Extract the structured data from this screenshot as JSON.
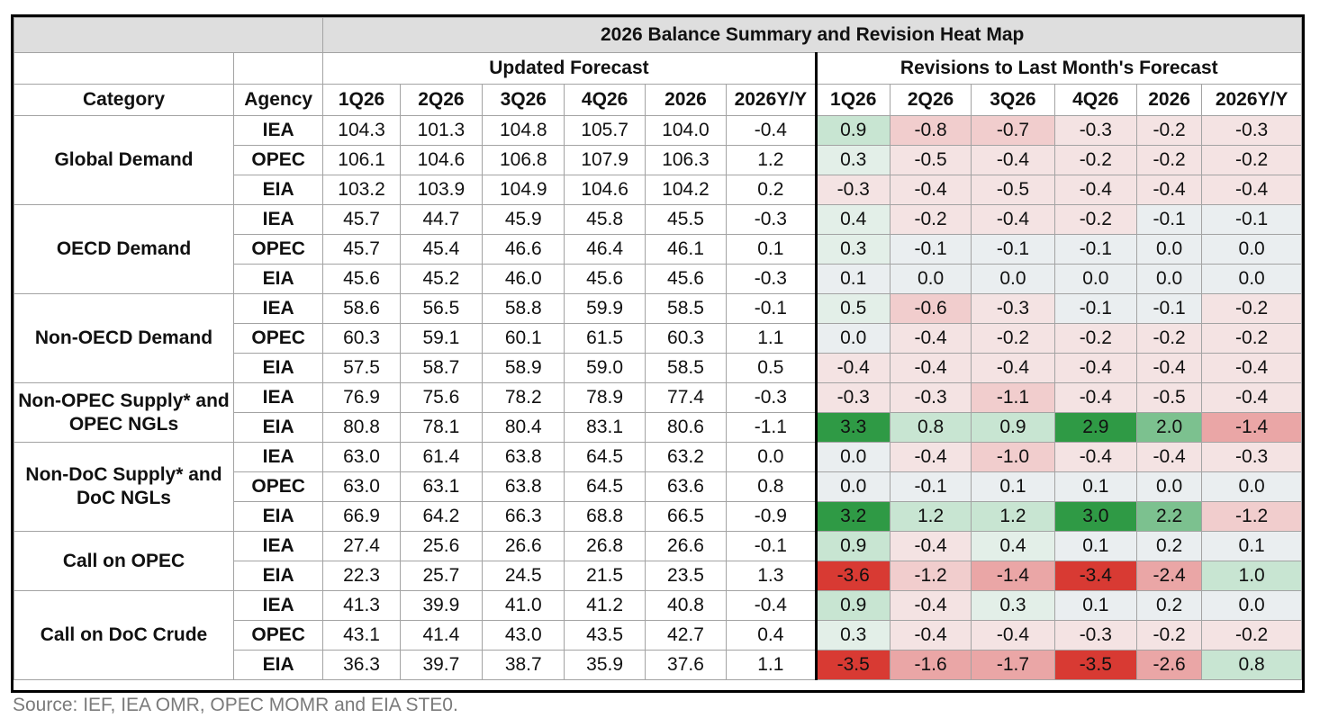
{
  "title": "2026 Balance Summary and Revision Heat Map",
  "groups": {
    "updated": "Updated Forecast",
    "revisions": "Revisions to Last Month's Forecast"
  },
  "columns": {
    "category": "Category",
    "agency": "Agency",
    "periods": [
      "1Q26",
      "2Q26",
      "3Q26",
      "4Q26",
      "2026",
      "2026Y/Y"
    ]
  },
  "heat_colors": {
    "positive_strong": "#2f9a45",
    "positive_mid": "#7cc18f",
    "positive_light": "#c8e5d2",
    "positive_faint": "#e3efe8",
    "neutral": "#eaeef0",
    "negative_faint": "#f4e3e3",
    "negative_light": "#f1cdcd",
    "negative_mid": "#eaa6a6",
    "negative_strong": "#d83a33"
  },
  "categories": [
    {
      "name": "Global Demand",
      "rows": [
        {
          "agency": "IEA",
          "forecast": [
            "104.3",
            "101.3",
            "104.8",
            "105.7",
            "104.0",
            "-0.4"
          ],
          "revisions": [
            "0.9",
            "-0.8",
            "-0.7",
            "-0.3",
            "-0.2",
            "-0.3"
          ]
        },
        {
          "agency": "OPEC",
          "forecast": [
            "106.1",
            "104.6",
            "106.8",
            "107.9",
            "106.3",
            "1.2"
          ],
          "revisions": [
            "0.3",
            "-0.5",
            "-0.4",
            "-0.2",
            "-0.2",
            "-0.2"
          ]
        },
        {
          "agency": "EIA",
          "forecast": [
            "103.2",
            "103.9",
            "104.9",
            "104.6",
            "104.2",
            "0.2"
          ],
          "revisions": [
            "-0.3",
            "-0.4",
            "-0.5",
            "-0.4",
            "-0.4",
            "-0.4"
          ]
        }
      ]
    },
    {
      "name": "OECD Demand",
      "rows": [
        {
          "agency": "IEA",
          "forecast": [
            "45.7",
            "44.7",
            "45.9",
            "45.8",
            "45.5",
            "-0.3"
          ],
          "revisions": [
            "0.4",
            "-0.2",
            "-0.4",
            "-0.2",
            "-0.1",
            "-0.1"
          ]
        },
        {
          "agency": "OPEC",
          "forecast": [
            "45.7",
            "45.4",
            "46.6",
            "46.4",
            "46.1",
            "0.1"
          ],
          "revisions": [
            "0.3",
            "-0.1",
            "-0.1",
            "-0.1",
            "0.0",
            "0.0"
          ]
        },
        {
          "agency": "EIA",
          "forecast": [
            "45.6",
            "45.2",
            "46.0",
            "45.6",
            "45.6",
            "-0.3"
          ],
          "revisions": [
            "0.1",
            "0.0",
            "0.0",
            "0.0",
            "0.0",
            "0.0"
          ]
        }
      ]
    },
    {
      "name": "Non-OECD Demand",
      "rows": [
        {
          "agency": "IEA",
          "forecast": [
            "58.6",
            "56.5",
            "58.8",
            "59.9",
            "58.5",
            "-0.1"
          ],
          "revisions": [
            "0.5",
            "-0.6",
            "-0.3",
            "-0.1",
            "-0.1",
            "-0.2"
          ]
        },
        {
          "agency": "OPEC",
          "forecast": [
            "60.3",
            "59.1",
            "60.1",
            "61.5",
            "60.3",
            "1.1"
          ],
          "revisions": [
            "0.0",
            "-0.4",
            "-0.2",
            "-0.2",
            "-0.2",
            "-0.2"
          ]
        },
        {
          "agency": "EIA",
          "forecast": [
            "57.5",
            "58.7",
            "58.9",
            "59.0",
            "58.5",
            "0.5"
          ],
          "revisions": [
            "-0.4",
            "-0.4",
            "-0.4",
            "-0.4",
            "-0.4",
            "-0.4"
          ]
        }
      ]
    },
    {
      "name": "Non-OPEC Supply* and OPEC NGLs",
      "rows": [
        {
          "agency": "IEA",
          "forecast": [
            "76.9",
            "75.6",
            "78.2",
            "78.9",
            "77.4",
            "-0.3"
          ],
          "revisions": [
            "-0.3",
            "-0.3",
            "-1.1",
            "-0.4",
            "-0.5",
            "-0.4"
          ]
        },
        {
          "agency": "EIA",
          "forecast": [
            "80.8",
            "78.1",
            "80.4",
            "83.1",
            "80.6",
            "-1.1"
          ],
          "revisions": [
            "3.3",
            "0.8",
            "0.9",
            "2.9",
            "2.0",
            "-1.4"
          ]
        }
      ]
    },
    {
      "name": "Non-DoC Supply* and DoC NGLs",
      "rows": [
        {
          "agency": "IEA",
          "forecast": [
            "63.0",
            "61.4",
            "63.8",
            "64.5",
            "63.2",
            "0.0"
          ],
          "revisions": [
            "0.0",
            "-0.4",
            "-1.0",
            "-0.4",
            "-0.4",
            "-0.3"
          ]
        },
        {
          "agency": "OPEC",
          "forecast": [
            "63.0",
            "63.1",
            "63.8",
            "64.5",
            "63.6",
            "0.8"
          ],
          "revisions": [
            "0.0",
            "-0.1",
            "0.1",
            "0.1",
            "0.0",
            "0.0"
          ]
        },
        {
          "agency": "EIA",
          "forecast": [
            "66.9",
            "64.2",
            "66.3",
            "68.8",
            "66.5",
            "-0.9"
          ],
          "revisions": [
            "3.2",
            "1.2",
            "1.2",
            "3.0",
            "2.2",
            "-1.2"
          ]
        }
      ]
    },
    {
      "name": "Call on OPEC",
      "rows": [
        {
          "agency": "IEA",
          "forecast": [
            "27.4",
            "25.6",
            "26.6",
            "26.8",
            "26.6",
            "-0.1"
          ],
          "revisions": [
            "0.9",
            "-0.4",
            "0.4",
            "0.1",
            "0.2",
            "0.1"
          ]
        },
        {
          "agency": "EIA",
          "forecast": [
            "22.3",
            "25.7",
            "24.5",
            "21.5",
            "23.5",
            "1.3"
          ],
          "revisions": [
            "-3.6",
            "-1.2",
            "-1.4",
            "-3.4",
            "-2.4",
            "1.0"
          ]
        }
      ]
    },
    {
      "name": "Call on DoC Crude",
      "rows": [
        {
          "agency": "IEA",
          "forecast": [
            "41.3",
            "39.9",
            "41.0",
            "41.2",
            "40.8",
            "-0.4"
          ],
          "revisions": [
            "0.9",
            "-0.4",
            "0.3",
            "0.1",
            "0.2",
            "0.0"
          ]
        },
        {
          "agency": "OPEC",
          "forecast": [
            "43.1",
            "41.4",
            "43.0",
            "43.5",
            "42.7",
            "0.4"
          ],
          "revisions": [
            "0.3",
            "-0.4",
            "-0.4",
            "-0.3",
            "-0.2",
            "-0.2"
          ]
        },
        {
          "agency": "EIA",
          "forecast": [
            "36.3",
            "39.7",
            "38.7",
            "35.9",
            "37.6",
            "1.1"
          ],
          "revisions": [
            "-3.5",
            "-1.6",
            "-1.7",
            "-3.5",
            "-2.6",
            "0.8"
          ]
        }
      ]
    }
  ],
  "source": "Source: IEF, IEA OMR, OPEC MOMR and EIA STE0."
}
